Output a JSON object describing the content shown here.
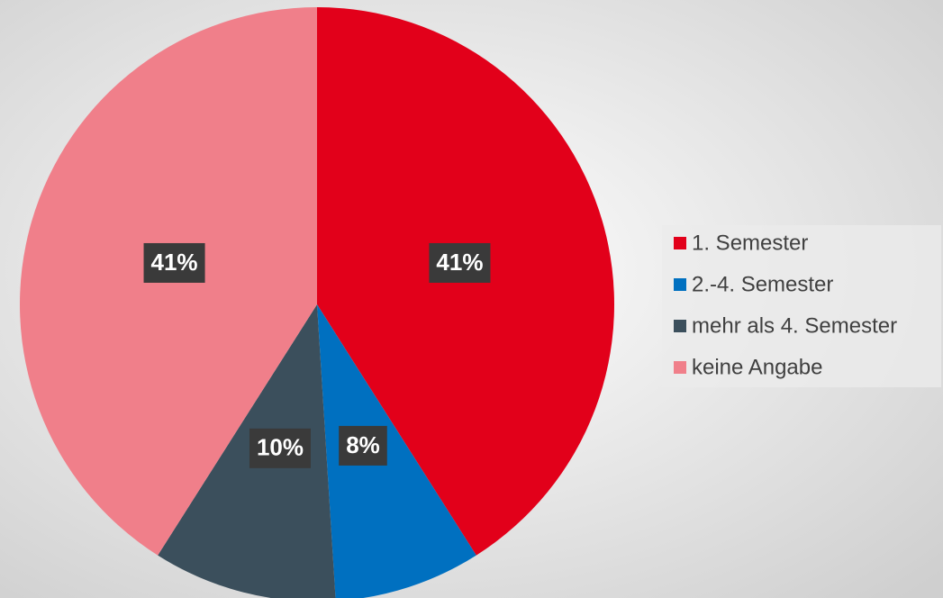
{
  "chart_data": {
    "type": "pie",
    "categories": [
      "1. Semester",
      "2.-4. Semester",
      "mehr als 4. Semester",
      "keine Angabe"
    ],
    "values": [
      41,
      8,
      10,
      41
    ],
    "value_labels": [
      "41%",
      "8%",
      "10%",
      "41%"
    ],
    "colors": [
      "#e2001a",
      "#0070c0",
      "#3b4f5c",
      "#f07f8a"
    ],
    "legend": "right"
  }
}
